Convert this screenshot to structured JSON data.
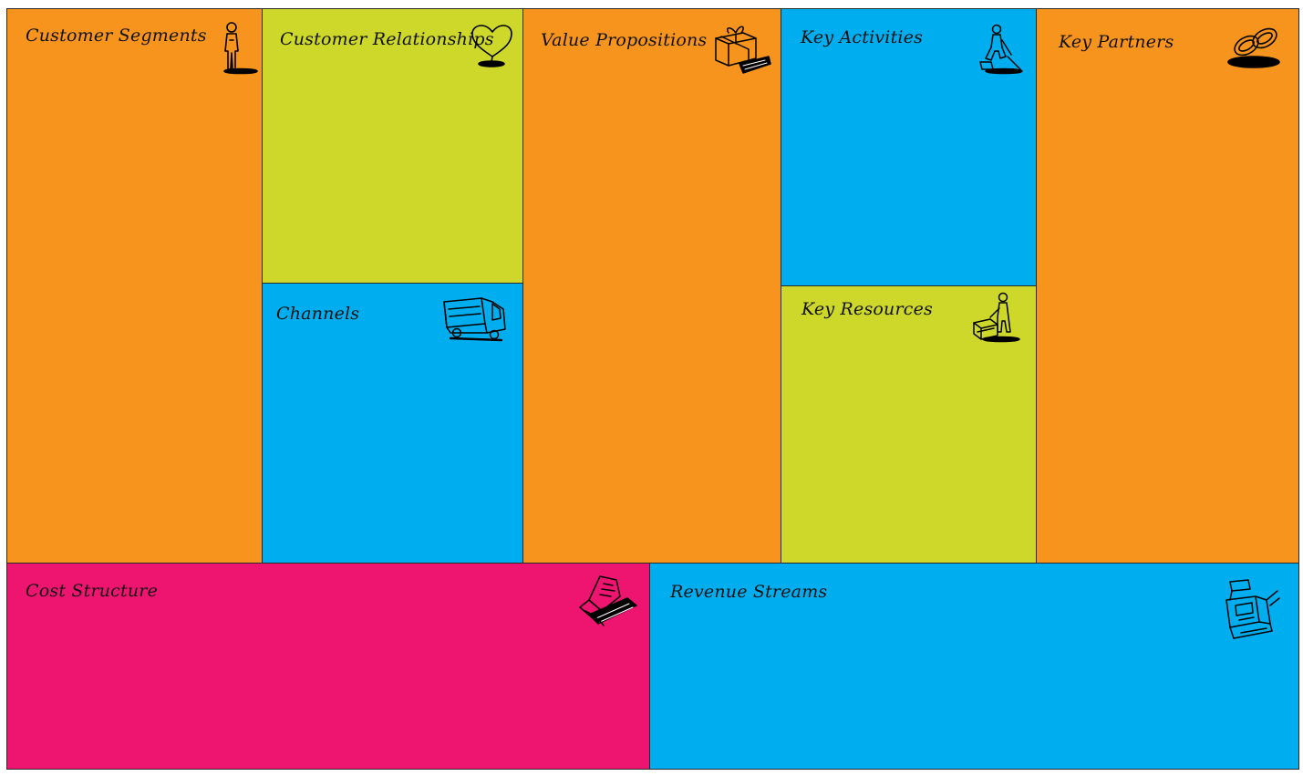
{
  "canvas": {
    "blocks": [
      {
        "id": "customer-segments",
        "label": "Customer Segments",
        "color": "#F7941D",
        "icon": "person-icon"
      },
      {
        "id": "customer-relationships",
        "label": "Customer Relationships",
        "color": "#CDD82B",
        "icon": "heart-icon"
      },
      {
        "id": "channels",
        "label": "Channels",
        "color": "#00AEEF",
        "icon": "truck-icon"
      },
      {
        "id": "value-propositions",
        "label": "Value Propositions",
        "color": "#F7941D",
        "icon": "gift-icon"
      },
      {
        "id": "key-activities",
        "label": "Key Activities",
        "color": "#00AEEF",
        "icon": "worker-icon"
      },
      {
        "id": "key-resources",
        "label": "Key Resources",
        "color": "#CDD82B",
        "icon": "worker-crate-icon"
      },
      {
        "id": "key-partners",
        "label": "Key Partners",
        "color": "#F7941D",
        "icon": "chain-link-icon"
      },
      {
        "id": "cost-structure",
        "label": "Cost Structure",
        "color": "#ED1570",
        "icon": "price-tag-icon"
      },
      {
        "id": "revenue-streams",
        "label": "Revenue Streams",
        "color": "#00AEEF",
        "icon": "cash-register-icon"
      }
    ]
  }
}
